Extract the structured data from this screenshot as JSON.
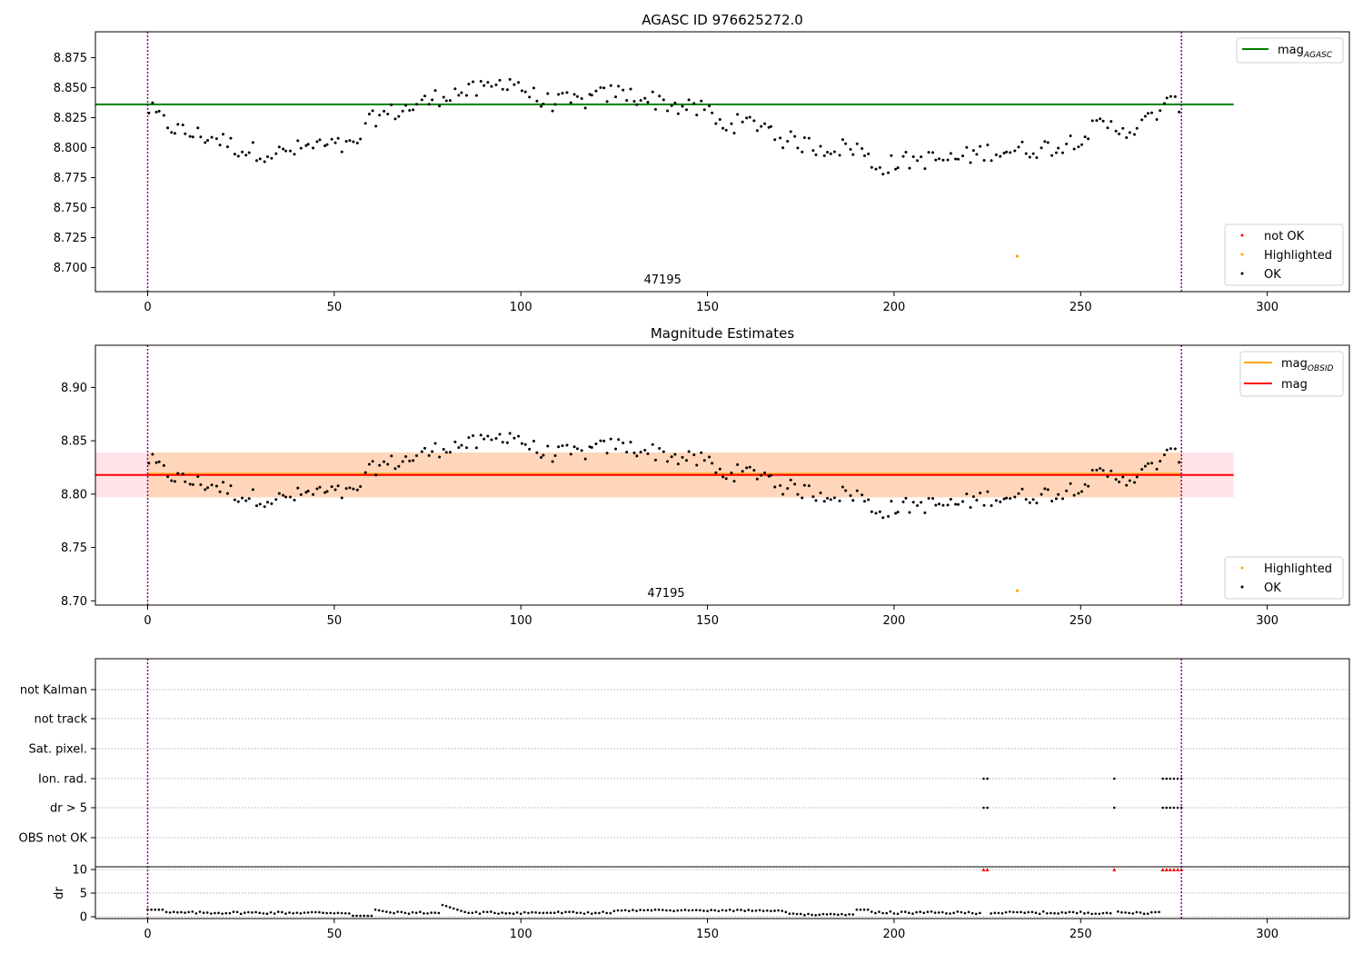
{
  "chart_data": [
    {
      "type": "scatter",
      "title": "AGASC ID 976625272.0",
      "xlabel": "",
      "ylabel": "",
      "xlim": [
        -14,
        322
      ],
      "ylim": [
        8.68,
        8.8965
      ],
      "xticks": [
        0,
        50,
        100,
        150,
        200,
        250,
        300
      ],
      "yticks": [
        8.7,
        8.725,
        8.75,
        8.775,
        8.8,
        8.825,
        8.85,
        8.875
      ],
      "ytick_labels": [
        "8.700",
        "8.725",
        "8.750",
        "8.775",
        "8.800",
        "8.825",
        "8.850",
        "8.875"
      ],
      "obsid_label": "47195",
      "obsid_label_x": 138,
      "vlines": [
        0,
        277
      ],
      "hline": {
        "name": "mag_AGASC",
        "value": 8.836,
        "xmin": -14,
        "xmax": 291,
        "color": "#008000"
      },
      "highlighted": [
        {
          "x": 233,
          "y": 8.7095
        }
      ],
      "legends": {
        "lines": [
          "mag",
          "AGASC"
        ],
        "points": [
          "not OK",
          "Highlighted",
          "OK"
        ]
      }
    },
    {
      "type": "scatter",
      "title": "Magnitude Estimates",
      "xlabel": "",
      "ylabel": "",
      "xlim": [
        -14,
        322
      ],
      "ylim": [
        8.696,
        8.9395
      ],
      "xticks": [
        0,
        50,
        100,
        150,
        200,
        250,
        300
      ],
      "yticks": [
        8.7,
        8.75,
        8.8,
        8.85,
        8.9
      ],
      "ytick_labels": [
        "8.70",
        "8.75",
        "8.80",
        "8.85",
        "8.90"
      ],
      "obsid_label": "47195",
      "obsid_label_x": 138,
      "vlines": [
        0,
        277
      ],
      "mag_band": {
        "low": 8.797,
        "high": 8.839,
        "xmin": -14,
        "xmax": 291
      },
      "obsid_band": {
        "low": 8.797,
        "high": 8.839,
        "xmin": 0,
        "xmax": 277
      },
      "hlines": [
        {
          "name": "mag_OBSID",
          "value": 8.819,
          "xmin": 0,
          "xmax": 277,
          "color": "#ffa500"
        },
        {
          "name": "mag",
          "value": 8.818,
          "xmin": -14,
          "xmax": 291,
          "color": "#ff0000"
        }
      ],
      "highlighted": [
        {
          "x": 233,
          "y": 8.7095
        }
      ],
      "legends": {
        "lines": [
          [
            "mag",
            "OBSID"
          ],
          [
            "mag",
            ""
          ]
        ],
        "points": [
          "Highlighted",
          "OK"
        ]
      }
    },
    {
      "type": "scatter",
      "title": "",
      "xlim": [
        -14,
        322
      ],
      "xticks": [
        0,
        50,
        100,
        150,
        200,
        250,
        300
      ],
      "flag_labels": [
        "not Kalman",
        "not track",
        "Sat. pixel.",
        "Ion. rad.",
        "dr > 5",
        "OBS not OK"
      ],
      "flag_points": {
        "Ion. rad.": [
          224,
          225,
          259,
          272,
          273,
          274,
          275,
          276,
          277
        ],
        "dr > 5": [
          224,
          225,
          259,
          272,
          273,
          274,
          275,
          276,
          277
        ]
      },
      "dr_ylabel": "dr",
      "dr_yticks": [
        0,
        5,
        10
      ],
      "dr_clip": 10,
      "dr_high_points": [
        224,
        225,
        259,
        272,
        273,
        274,
        275,
        276,
        277
      ],
      "vlines": [
        0,
        277
      ]
    }
  ]
}
